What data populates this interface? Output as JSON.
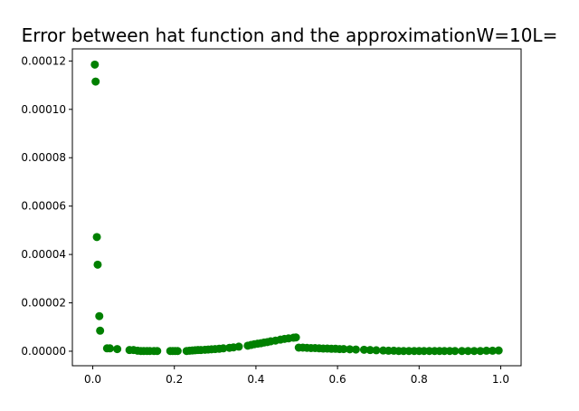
{
  "chart_data": {
    "type": "scatter",
    "title": "Error between hat function and the approximationW=10L=",
    "xlabel": "",
    "ylabel": "",
    "xlim": [
      -0.05,
      1.05
    ],
    "ylim": [
      -6e-06,
      0.000125
    ],
    "xticks": [
      0.0,
      0.2,
      0.4,
      0.6,
      0.8,
      1.0
    ],
    "xtick_labels": [
      "0.0",
      "0.2",
      "0.4",
      "0.6",
      "0.8",
      "1.0"
    ],
    "yticks": [
      0.0,
      2e-05,
      4e-05,
      6e-05,
      8e-05,
      0.0001,
      0.00012
    ],
    "ytick_labels": [
      "0.00000",
      "0.00002",
      "0.00004",
      "0.00006",
      "0.00008",
      "0.00010",
      "0.00012"
    ],
    "grid": false,
    "legend": "none",
    "marker_color": "#008000",
    "series": [
      {
        "x": [
          0.005,
          0.007,
          0.01,
          0.012,
          0.016,
          0.018,
          0.035,
          0.042,
          0.06,
          0.09,
          0.1,
          0.11,
          0.118,
          0.125,
          0.133,
          0.14,
          0.15,
          0.158,
          0.19,
          0.196,
          0.202,
          0.208,
          0.23,
          0.237,
          0.244,
          0.251,
          0.258,
          0.265,
          0.275,
          0.283,
          0.291,
          0.3,
          0.31,
          0.32,
          0.335,
          0.345,
          0.358,
          0.38,
          0.388,
          0.396,
          0.404,
          0.412,
          0.42,
          0.428,
          0.436,
          0.448,
          0.46,
          0.47,
          0.48,
          0.492,
          0.498,
          0.505,
          0.515,
          0.525,
          0.535,
          0.545,
          0.555,
          0.565,
          0.575,
          0.585,
          0.595,
          0.605,
          0.615,
          0.63,
          0.645,
          0.665,
          0.68,
          0.695,
          0.712,
          0.725,
          0.738,
          0.75,
          0.762,
          0.775,
          0.788,
          0.8,
          0.812,
          0.825,
          0.838,
          0.85,
          0.862,
          0.875,
          0.888,
          0.905,
          0.92,
          0.935,
          0.95,
          0.965,
          0.98,
          0.995
        ],
        "y": [
          0.0001185,
          0.0001115,
          4.72e-05,
          3.58e-05,
          1.45e-05,
          8.5e-06,
          1.2e-06,
          1.2e-06,
          9e-07,
          5e-07,
          5e-07,
          2e-07,
          1e-07,
          1e-07,
          1e-07,
          1e-07,
          1e-07,
          1e-07,
          1e-07,
          1e-07,
          1e-07,
          1e-07,
          1e-07,
          2e-07,
          3e-07,
          4e-07,
          5e-07,
          5e-07,
          6e-07,
          7e-07,
          8e-07,
          9e-07,
          1e-06,
          1.2e-06,
          1.4e-06,
          1.6e-06,
          1.9e-06,
          2.3e-06,
          2.6e-06,
          2.9e-06,
          3.1e-06,
          3.3e-06,
          3.6e-06,
          3.8e-06,
          4.1e-06,
          4.4e-06,
          4.8e-06,
          5.1e-06,
          5.3e-06,
          5.6e-06,
          5.7e-06,
          1.5e-06,
          1.5e-06,
          1.4e-06,
          1.3e-06,
          1.3e-06,
          1.2e-06,
          1.1e-06,
          1.1e-06,
          1e-06,
          1e-06,
          9e-07,
          9e-07,
          8e-07,
          7e-07,
          6e-07,
          5e-07,
          4e-07,
          3e-07,
          2e-07,
          2e-07,
          1e-07,
          1e-07,
          1e-07,
          1e-07,
          1e-07,
          1e-07,
          1e-07,
          1e-07,
          1e-07,
          1e-07,
          1e-07,
          1e-07,
          1e-07,
          1e-07,
          1e-07,
          1e-07,
          2e-07,
          2e-07,
          3e-07
        ]
      }
    ]
  }
}
